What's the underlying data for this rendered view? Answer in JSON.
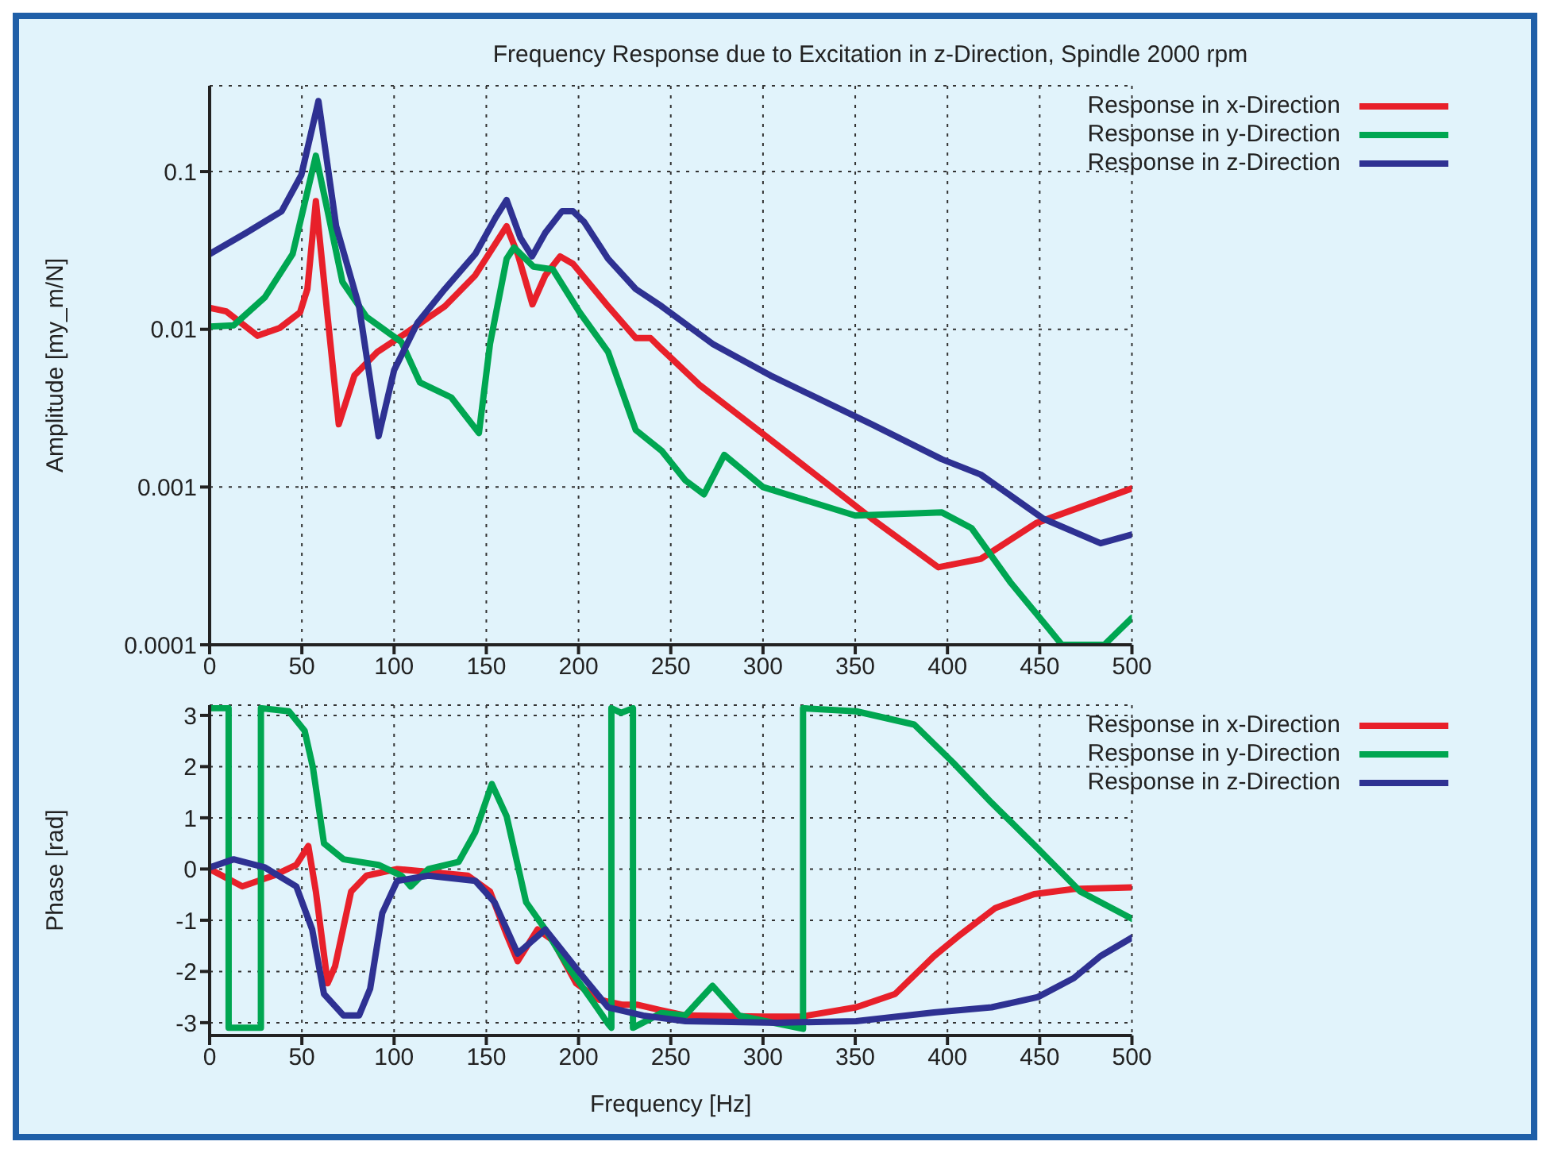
{
  "chart_data": [
    {
      "type": "line",
      "title": "Frequency Response due to Excitation in z-Direction, Spindle 2000 rpm",
      "ylabel": "Amplitude [my_m/N]",
      "log": "y",
      "grid": true,
      "legend": "top right",
      "xlim": [
        0,
        500
      ],
      "xticks": [
        0,
        50,
        100,
        150,
        200,
        250,
        300,
        350,
        400,
        450,
        500
      ],
      "ylim": [
        0.0001,
        0.35
      ],
      "yticks": [
        0.0001,
        0.001,
        0.01,
        0.1
      ],
      "series": [
        {
          "name": "Response in x-Direction",
          "color": "#e8202a",
          "x": [
            0,
            9,
            26,
            38,
            49,
            53,
            57.6,
            64,
            70,
            78.5,
            91,
            106,
            127.5,
            144,
            161,
            167,
            175,
            182,
            190,
            197,
            216,
            231,
            239,
            245,
            266,
            304,
            359,
            395,
            418,
            448,
            500
          ],
          "values": [
            0.0137,
            0.013,
            0.0091,
            0.0102,
            0.0128,
            0.018,
            0.065,
            0.0119,
            0.0025,
            0.0051,
            0.0072,
            0.0094,
            0.014,
            0.022,
            0.045,
            0.03,
            0.0144,
            0.022,
            0.029,
            0.026,
            0.014,
            0.0088,
            0.0088,
            0.0075,
            0.0044,
            0.002,
            0.00063,
            0.00031,
            0.00035,
            0.00059,
            0.00098
          ]
        },
        {
          "name": "Response in y-Direction",
          "color": "#00a651",
          "x": [
            0,
            13,
            30,
            45,
            57.6,
            64,
            72,
            85,
            104,
            114,
            131,
            146,
            152,
            161,
            165,
            175.5,
            186,
            200.6,
            216,
            231,
            245,
            258,
            268,
            279,
            300,
            350,
            397,
            413,
            434,
            455,
            462,
            485,
            500
          ],
          "values": [
            0.0104,
            0.0106,
            0.016,
            0.03,
            0.126,
            0.056,
            0.02,
            0.012,
            0.0083,
            0.0046,
            0.0037,
            0.0022,
            0.0081,
            0.028,
            0.033,
            0.025,
            0.024,
            0.0128,
            0.0072,
            0.0023,
            0.0017,
            0.0011,
            0.0009,
            0.0016,
            0.001,
            0.00066,
            0.00069,
            0.00055,
            0.00025,
            0.000126,
            0.0001,
            0.0001,
            0.000148
          ]
        },
        {
          "name": "Response in z-Direction",
          "color": "#2e3192",
          "x": [
            0,
            20,
            39,
            49.7,
            59,
            68.6,
            81,
            91.6,
            100,
            112.7,
            127.5,
            144,
            155,
            161,
            168.5,
            174.8,
            182,
            191,
            197,
            203,
            216,
            231,
            245,
            272.6,
            304,
            359,
            397,
            418,
            452,
            483,
            500
          ],
          "values": [
            0.03,
            0.041,
            0.056,
            0.095,
            0.28,
            0.045,
            0.014,
            0.0021,
            0.0055,
            0.011,
            0.018,
            0.03,
            0.051,
            0.066,
            0.038,
            0.029,
            0.041,
            0.056,
            0.056,
            0.048,
            0.028,
            0.018,
            0.014,
            0.0081,
            0.0051,
            0.0025,
            0.0015,
            0.0012,
            0.00063,
            0.00044,
            0.0005
          ]
        }
      ]
    },
    {
      "type": "line",
      "xlabel": "Frequency [Hz]",
      "ylabel": "Phase [rad]",
      "grid": true,
      "legend": "top right",
      "xlim": [
        0,
        500
      ],
      "xticks": [
        0,
        50,
        100,
        150,
        200,
        250,
        300,
        350,
        400,
        450,
        500
      ],
      "ylim": [
        -3.25,
        3.2
      ],
      "yticks": [
        -3,
        -2,
        -1,
        0,
        1,
        2,
        3
      ],
      "series": [
        {
          "name": "Response in x-Direction",
          "color": "#e8202a",
          "x": [
            0,
            17.7,
            34.5,
            47,
            53.5,
            57.6,
            64,
            68,
            76.7,
            85,
            101.7,
            140,
            152,
            161,
            167,
            177.8,
            186,
            198.7,
            211,
            224,
            232,
            245,
            258,
            300,
            321,
            350.5,
            371.6,
            392.7,
            407,
            426,
            447,
            468.5,
            500
          ],
          "values": [
            0,
            -0.34,
            -0.13,
            0.08,
            0.45,
            -0.44,
            -2.23,
            -1.9,
            -0.44,
            -0.13,
            0,
            -0.13,
            -0.44,
            -1.28,
            -1.8,
            -1.18,
            -1.39,
            -2.23,
            -2.55,
            -2.65,
            -2.65,
            -2.76,
            -2.86,
            -2.88,
            -2.88,
            -2.7,
            -2.44,
            -1.7,
            -1.28,
            -0.76,
            -0.49,
            -0.39,
            -0.36
          ]
        },
        {
          "name": "Response in y-Direction",
          "color": "#00a651",
          "x": [
            0,
            10.3,
            10.3,
            27.8,
            27.8,
            43,
            51.5,
            56,
            62,
            72.6,
            91.6,
            104,
            109,
            118.6,
            135,
            144,
            153,
            161,
            171.6,
            182,
            194.6,
            207,
            216,
            217.8,
            217.8,
            223,
            229.5,
            229.5,
            245,
            257.8,
            272.6,
            287,
            308,
            321.7,
            321.7,
            350.5,
            382,
            403,
            424,
            449,
            472,
            500
          ],
          "values": [
            3.14,
            3.14,
            -3.1,
            -3.1,
            3.14,
            3.08,
            2.7,
            1.98,
            0.5,
            0.19,
            0.08,
            -0.13,
            -0.34,
            0,
            0.14,
            0.72,
            1.66,
            1.03,
            -0.65,
            -1.18,
            -1.92,
            -2.55,
            -3.02,
            -3.1,
            3.14,
            3.05,
            3.14,
            -3.1,
            -2.81,
            -2.86,
            -2.28,
            -2.86,
            -3.02,
            -3.12,
            3.14,
            3.08,
            2.82,
            2.08,
            1.29,
            0.4,
            -0.44,
            -0.97
          ]
        },
        {
          "name": "Response in z-Direction",
          "color": "#2e3192",
          "x": [
            0,
            13,
            30,
            47,
            55.6,
            62,
            72.6,
            81,
            87,
            93.6,
            101.7,
            118.6,
            144,
            154.5,
            167,
            182,
            203,
            216,
            235,
            258,
            308,
            350.5,
            392.7,
            424,
            449,
            468.5,
            483,
            500
          ],
          "values": [
            0.03,
            0.19,
            0.03,
            -0.34,
            -1.18,
            -2.44,
            -2.86,
            -2.86,
            -2.34,
            -0.86,
            -0.23,
            -0.13,
            -0.23,
            -0.65,
            -1.65,
            -1.18,
            -2.13,
            -2.7,
            -2.86,
            -2.97,
            -3.0,
            -2.97,
            -2.8,
            -2.7,
            -2.5,
            -2.13,
            -1.7,
            -1.34
          ]
        }
      ]
    }
  ]
}
